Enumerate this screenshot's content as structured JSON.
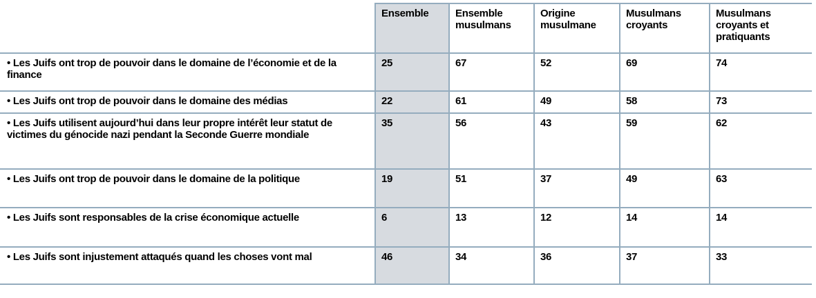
{
  "table": {
    "columns": [
      "",
      "Ensemble",
      "Ensemble musulmans",
      "Origine musulmane",
      "Musulmans croyants",
      "Musulmans croyants et pratiquants"
    ],
    "rows": [
      {
        "label": "• Les Juifs ont trop de pouvoir dans le domaine de l’économie et de la finance",
        "values": [
          "25",
          "67",
          "52",
          "69",
          "74"
        ]
      },
      {
        "label": "• Les Juifs ont trop de pouvoir dans le domaine des médias",
        "values": [
          "22",
          "61",
          "49",
          "58",
          "73"
        ]
      },
      {
        "label": "• Les Juifs utilisent aujourd’hui dans leur propre intérêt leur statut de victimes du génocide nazi pendant la Seconde Guerre mondiale",
        "values": [
          "35",
          "56",
          "43",
          "59",
          "62"
        ]
      },
      {
        "label": "• Les Juifs ont trop de pouvoir dans le domaine de la politique",
        "values": [
          "19",
          "51",
          "37",
          "49",
          "63"
        ]
      },
      {
        "label": "• Les Juifs sont responsables de la crise économique actuelle",
        "values": [
          "6",
          "13",
          "12",
          "14",
          "14"
        ]
      },
      {
        "label": "• Les Juifs sont injustement attaqués quand les choses vont mal",
        "values": [
          "46",
          "34",
          "36",
          "37",
          "33"
        ]
      }
    ]
  },
  "colors": {
    "border": "#94acbe",
    "highlight_column": "#d7dbe0",
    "text": "#000000"
  }
}
